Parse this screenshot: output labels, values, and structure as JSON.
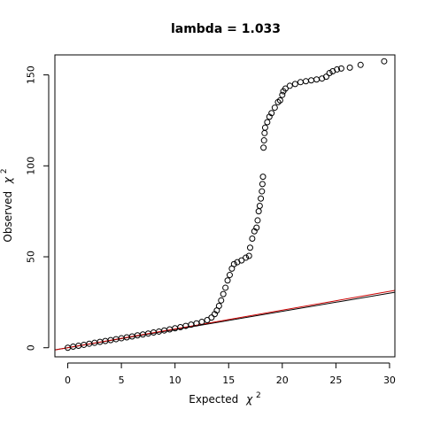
{
  "chart_data": {
    "type": "scatter",
    "title": "lambda = 1.033",
    "xlabel": "Expected",
    "ylabel": "Observed",
    "label_symbol": "χ",
    "label_superscript": "2",
    "xlim": [
      -1.2,
      30.5
    ],
    "ylim": [
      -5,
      161
    ],
    "xticks": [
      0,
      5,
      10,
      15,
      20,
      25,
      30
    ],
    "yticks": [
      0,
      50,
      100,
      150
    ],
    "grid": false,
    "point_color": "#000000",
    "series": [
      {
        "points": [
          [
            0.0,
            0.0
          ],
          [
            0.5,
            0.6
          ],
          [
            1.0,
            1.1
          ],
          [
            1.5,
            1.6
          ],
          [
            2.0,
            2.2
          ],
          [
            2.5,
            2.7
          ],
          [
            3.0,
            3.2
          ],
          [
            3.5,
            3.7
          ],
          [
            4.0,
            4.2
          ],
          [
            4.5,
            4.7
          ],
          [
            5.0,
            5.2
          ],
          [
            5.5,
            5.7
          ],
          [
            6.0,
            6.2
          ],
          [
            6.5,
            6.8
          ],
          [
            7.0,
            7.3
          ],
          [
            7.5,
            7.8
          ],
          [
            8.0,
            8.4
          ],
          [
            8.5,
            8.9
          ],
          [
            9.0,
            9.5
          ],
          [
            9.5,
            10.1
          ],
          [
            10.0,
            10.7
          ],
          [
            10.5,
            11.3
          ],
          [
            11.0,
            12.0
          ],
          [
            11.5,
            12.7
          ],
          [
            12.0,
            13.4
          ],
          [
            12.5,
            14.2
          ],
          [
            13.0,
            15.2
          ],
          [
            13.4,
            16.6
          ],
          [
            13.7,
            18.5
          ],
          [
            13.9,
            20.5
          ],
          [
            14.1,
            23.0
          ],
          [
            14.3,
            26.0
          ],
          [
            14.5,
            29.5
          ],
          [
            14.7,
            33.0
          ],
          [
            14.9,
            37.0
          ],
          [
            15.1,
            40.0
          ],
          [
            15.3,
            43.5
          ],
          [
            15.5,
            46.0
          ],
          [
            15.8,
            47.0
          ],
          [
            16.2,
            48.0
          ],
          [
            16.6,
            49.5
          ],
          [
            16.9,
            50.5
          ],
          [
            17.0,
            55.0
          ],
          [
            17.2,
            60.0
          ],
          [
            17.4,
            64.0
          ],
          [
            17.6,
            66.0
          ],
          [
            17.7,
            70.0
          ],
          [
            17.8,
            75.0
          ],
          [
            17.9,
            78.0
          ],
          [
            18.0,
            82.0
          ],
          [
            18.1,
            86.0
          ],
          [
            18.15,
            90.0
          ],
          [
            18.2,
            94.0
          ],
          [
            18.25,
            110.0
          ],
          [
            18.3,
            114.0
          ],
          [
            18.35,
            118.0
          ],
          [
            18.4,
            121.0
          ],
          [
            18.6,
            124.0
          ],
          [
            18.8,
            127.0
          ],
          [
            19.0,
            129.0
          ],
          [
            19.3,
            132.0
          ],
          [
            19.6,
            135.0
          ],
          [
            19.8,
            136.0
          ],
          [
            20.0,
            139.0
          ],
          [
            20.1,
            141.0
          ],
          [
            20.3,
            142.5
          ],
          [
            20.7,
            144.0
          ],
          [
            21.2,
            145.0
          ],
          [
            21.7,
            146.0
          ],
          [
            22.2,
            146.5
          ],
          [
            22.7,
            147.0
          ],
          [
            23.2,
            147.5
          ],
          [
            23.7,
            148.0
          ],
          [
            24.1,
            149.0
          ],
          [
            24.4,
            151.0
          ],
          [
            24.7,
            152.0
          ],
          [
            25.1,
            153.0
          ],
          [
            25.5,
            153.5
          ],
          [
            26.3,
            154.0
          ],
          [
            27.3,
            155.5
          ],
          [
            29.5,
            157.5
          ]
        ]
      }
    ],
    "reference_lines": [
      {
        "slope": 1.0,
        "intercept": 0,
        "color": "#000000"
      },
      {
        "slope": 1.033,
        "intercept": 0,
        "color": "#cc0000"
      }
    ]
  }
}
